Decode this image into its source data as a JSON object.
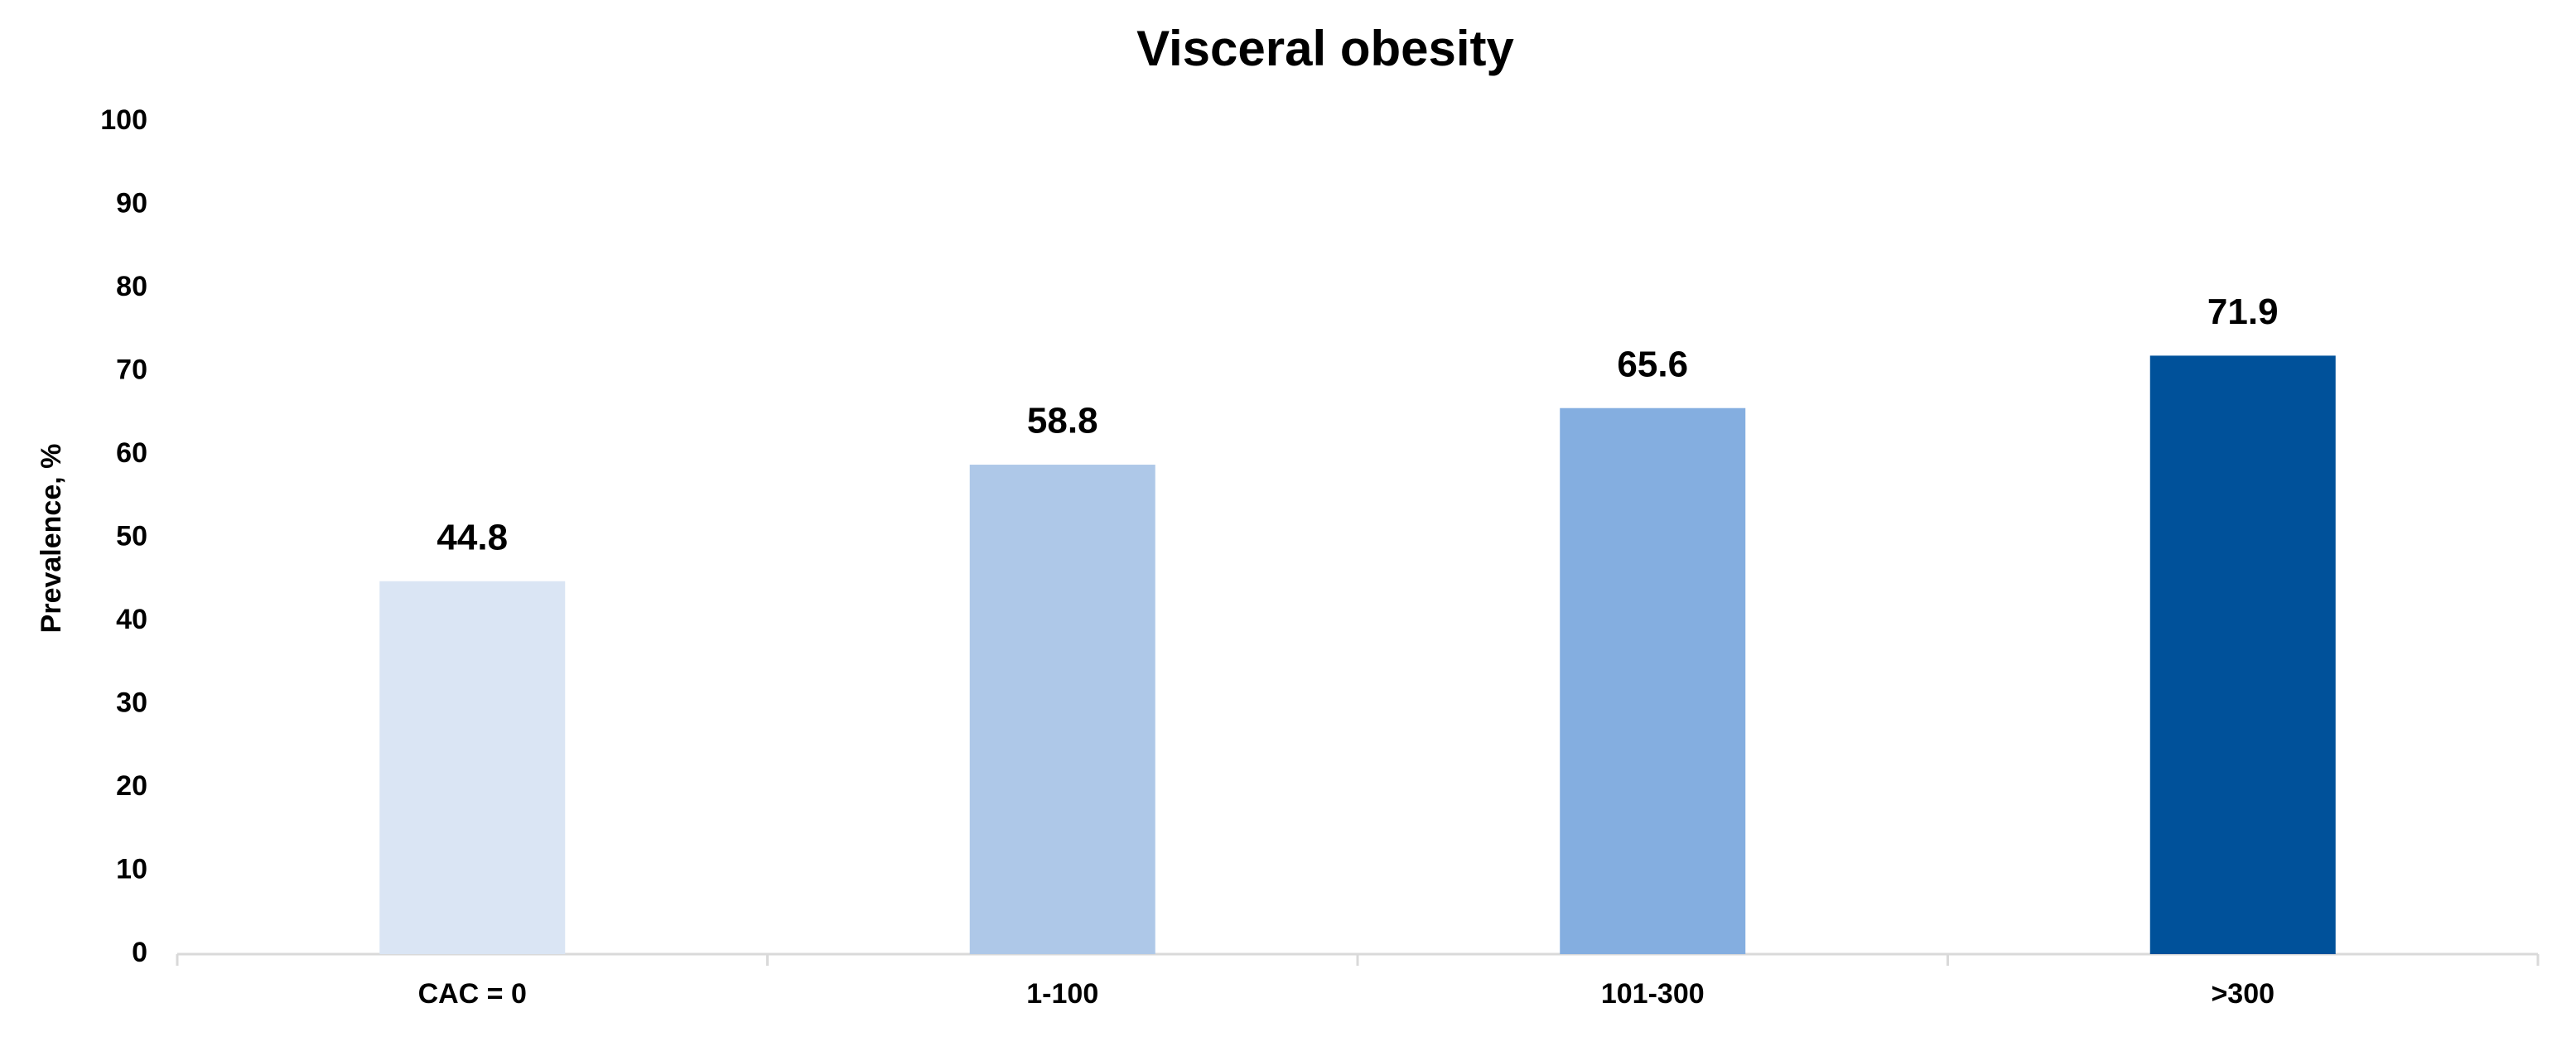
{
  "chart_data": {
    "type": "bar",
    "title": "Visceral obesity",
    "y_label": "Prevalence, %",
    "categories": [
      "CAC = 0",
      "1-100",
      "101-300",
      ">300"
    ],
    "values": [
      44.8,
      58.8,
      65.6,
      71.9
    ],
    "colors": [
      "#dae5f4",
      "#aec8e8",
      "#84aee0",
      "#00519a"
    ],
    "ylim": [
      0,
      100
    ],
    "yticks": [
      0,
      10,
      20,
      30,
      40,
      50,
      60,
      70,
      80,
      90,
      100
    ],
    "grid": false,
    "value_labels_shown": true
  }
}
